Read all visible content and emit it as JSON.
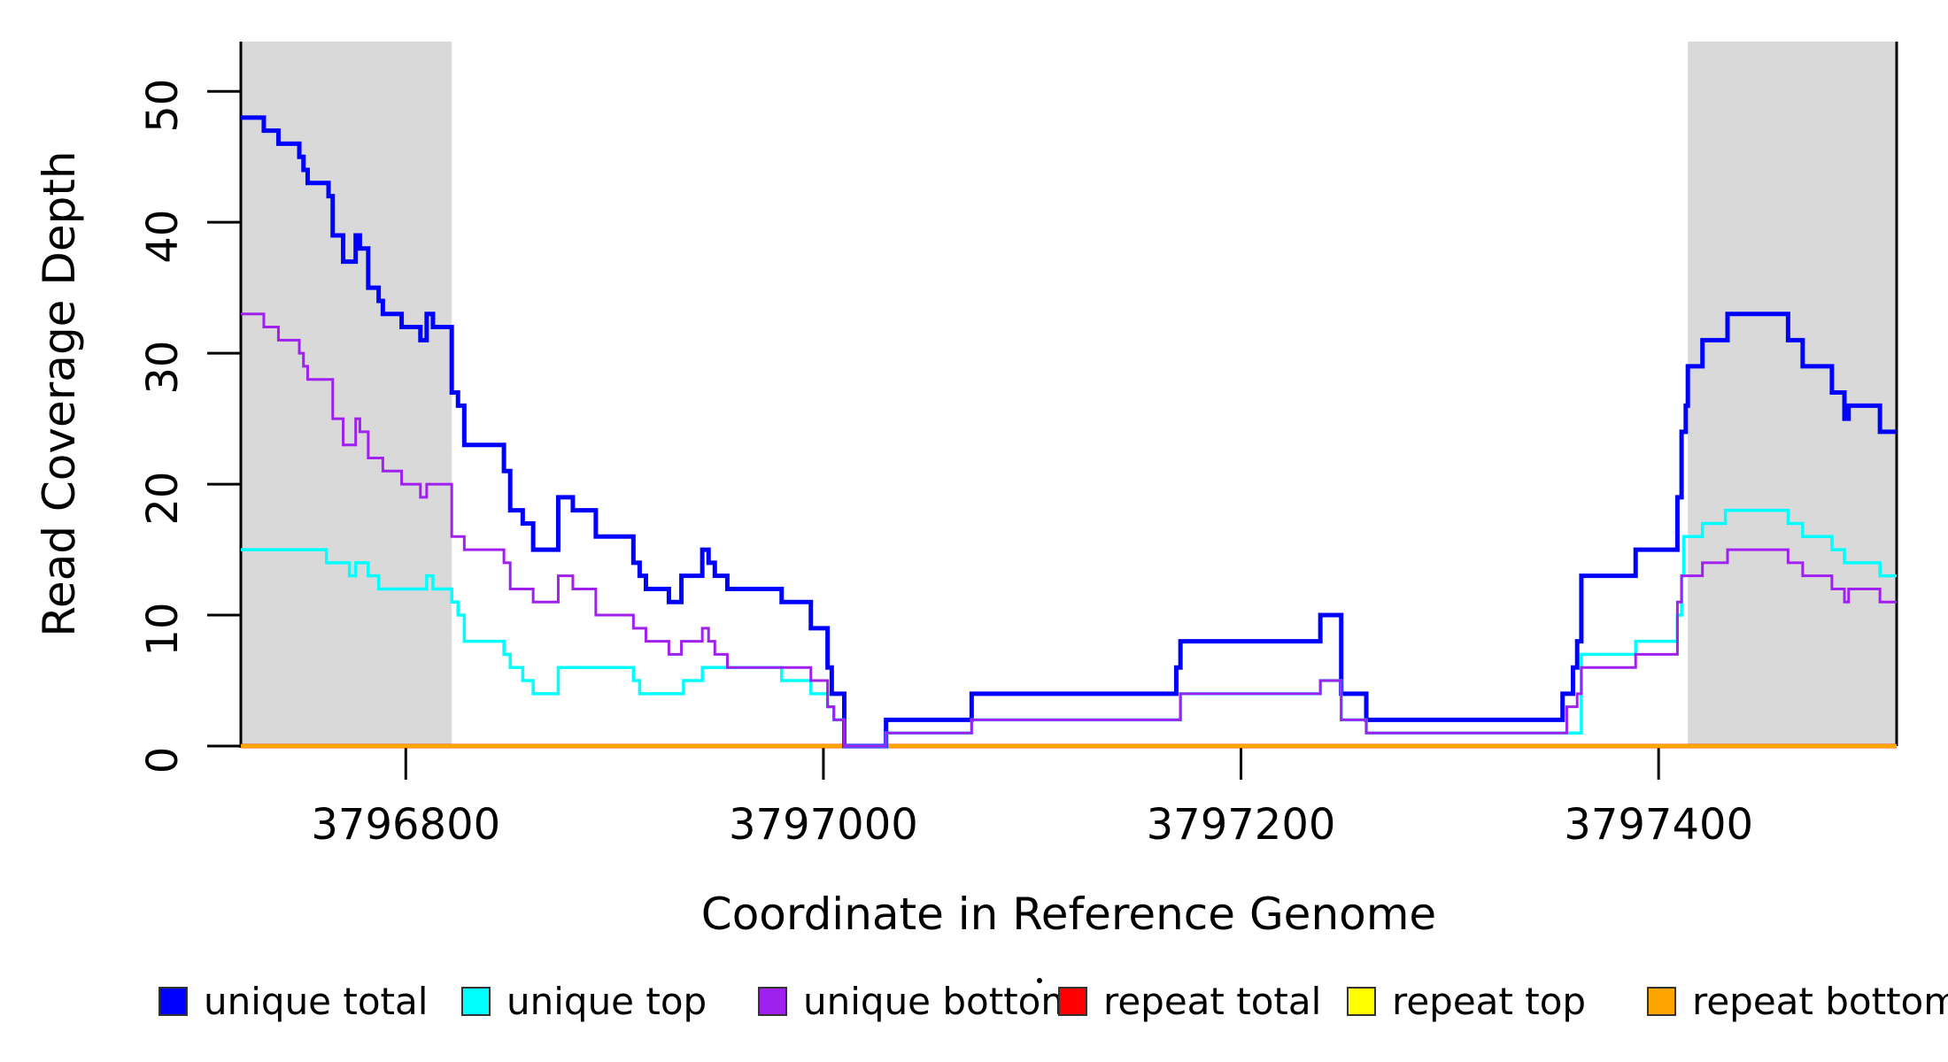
{
  "figure": {
    "xlabel": "Coordinate in Reference Genome",
    "ylabel": "Read Coverage Depth"
  },
  "chart_data": {
    "type": "line",
    "step": "step-after",
    "title": "",
    "xlabel": "Coordinate in Reference Genome",
    "ylabel": "Read Coverage Depth",
    "xlim": [
      3796721,
      3797514
    ],
    "ylim": [
      0,
      53.8
    ],
    "x_ticks": [
      3796800,
      3797000,
      3797200,
      3797400
    ],
    "y_ticks": [
      0,
      10,
      20,
      30,
      40,
      50
    ],
    "grid": false,
    "legend_position": "bottom",
    "background_color": "#ffffff",
    "shaded_region_color": "#d9d9d9",
    "shaded_regions": [
      [
        3796721,
        3796822
      ],
      [
        3797414,
        3797514
      ]
    ],
    "series": [
      {
        "name": "unique total",
        "color": "#0000ff",
        "line_width": 5,
        "points": [
          [
            3796721,
            48
          ],
          [
            3796732,
            47
          ],
          [
            3796739,
            46
          ],
          [
            3796749,
            45
          ],
          [
            3796751,
            44
          ],
          [
            3796753,
            43
          ],
          [
            3796763,
            42
          ],
          [
            3796765,
            39
          ],
          [
            3796770,
            37
          ],
          [
            3796776,
            39
          ],
          [
            3796778,
            38
          ],
          [
            3796782,
            35
          ],
          [
            3796787,
            34
          ],
          [
            3796789,
            33
          ],
          [
            3796798,
            32
          ],
          [
            3796807,
            31
          ],
          [
            3796810,
            33
          ],
          [
            3796813,
            32
          ],
          [
            3796822,
            27
          ],
          [
            3796825,
            26
          ],
          [
            3796828,
            23
          ],
          [
            3796847,
            21
          ],
          [
            3796850,
            18
          ],
          [
            3796856,
            17
          ],
          [
            3796861,
            15
          ],
          [
            3796873,
            19
          ],
          [
            3796880,
            18
          ],
          [
            3796891,
            16
          ],
          [
            3796909,
            14
          ],
          [
            3796912,
            13
          ],
          [
            3796915,
            12
          ],
          [
            3796926,
            11
          ],
          [
            3796932,
            13
          ],
          [
            3796942,
            15
          ],
          [
            3796945,
            14
          ],
          [
            3796948,
            13
          ],
          [
            3796954,
            12
          ],
          [
            3796980,
            11
          ],
          [
            3796994,
            9
          ],
          [
            3797002,
            6
          ],
          [
            3797004,
            4
          ],
          [
            3797010,
            0
          ],
          [
            3797030,
            2
          ],
          [
            3797071,
            4
          ],
          [
            3797169,
            6
          ],
          [
            3797171,
            8
          ],
          [
            3797238,
            10
          ],
          [
            3797248,
            4
          ],
          [
            3797260,
            2
          ],
          [
            3797354,
            4
          ],
          [
            3797359,
            6
          ],
          [
            3797361,
            8
          ],
          [
            3797363,
            13
          ],
          [
            3797389,
            15
          ],
          [
            3797409,
            19
          ],
          [
            3797411,
            24
          ],
          [
            3797413,
            26
          ],
          [
            3797414,
            29
          ],
          [
            3797421,
            31
          ],
          [
            3797433,
            33
          ],
          [
            3797462,
            31
          ],
          [
            3797469,
            29
          ],
          [
            3797483,
            27
          ],
          [
            3797489,
            25
          ],
          [
            3797491,
            26
          ],
          [
            3797506,
            24
          ]
        ]
      },
      {
        "name": "unique top",
        "color": "#00ffff",
        "line_width": 3.5,
        "points": [
          [
            3796721,
            15
          ],
          [
            3796762,
            14
          ],
          [
            3796773,
            13
          ],
          [
            3796776,
            14
          ],
          [
            3796782,
            13
          ],
          [
            3796787,
            12
          ],
          [
            3796810,
            13
          ],
          [
            3796813,
            12
          ],
          [
            3796822,
            11
          ],
          [
            3796825,
            10
          ],
          [
            3796828,
            8
          ],
          [
            3796847,
            7
          ],
          [
            3796850,
            6
          ],
          [
            3796856,
            5
          ],
          [
            3796861,
            4
          ],
          [
            3796873,
            6
          ],
          [
            3796909,
            5
          ],
          [
            3796912,
            4
          ],
          [
            3796933,
            5
          ],
          [
            3796942,
            6
          ],
          [
            3796980,
            5
          ],
          [
            3796994,
            4
          ],
          [
            3797002,
            3
          ],
          [
            3797005,
            2
          ],
          [
            3797010,
            0
          ],
          [
            3797030,
            1
          ],
          [
            3797071,
            2
          ],
          [
            3797171,
            4
          ],
          [
            3797238,
            5
          ],
          [
            3797248,
            2
          ],
          [
            3797260,
            1
          ],
          [
            3797363,
            7
          ],
          [
            3797389,
            8
          ],
          [
            3797409,
            10
          ],
          [
            3797411,
            13
          ],
          [
            3797412,
            16
          ],
          [
            3797421,
            17
          ],
          [
            3797432,
            18
          ],
          [
            3797462,
            17
          ],
          [
            3797469,
            16
          ],
          [
            3797483,
            15
          ],
          [
            3797489,
            14
          ],
          [
            3797506,
            13
          ]
        ]
      },
      {
        "name": "unique bottom",
        "color": "#a020f0",
        "line_width": 3,
        "points": [
          [
            3796721,
            33
          ],
          [
            3796732,
            32
          ],
          [
            3796739,
            31
          ],
          [
            3796749,
            30
          ],
          [
            3796751,
            29
          ],
          [
            3796753,
            28
          ],
          [
            3796765,
            25
          ],
          [
            3796770,
            23
          ],
          [
            3796776,
            25
          ],
          [
            3796778,
            24
          ],
          [
            3796782,
            22
          ],
          [
            3796789,
            21
          ],
          [
            3796798,
            20
          ],
          [
            3796807,
            19
          ],
          [
            3796810,
            20
          ],
          [
            3796822,
            16
          ],
          [
            3796828,
            15
          ],
          [
            3796847,
            14
          ],
          [
            3796850,
            12
          ],
          [
            3796861,
            11
          ],
          [
            3796873,
            13
          ],
          [
            3796880,
            12
          ],
          [
            3796891,
            10
          ],
          [
            3796909,
            9
          ],
          [
            3796915,
            8
          ],
          [
            3796926,
            7
          ],
          [
            3796932,
            8
          ],
          [
            3796942,
            9
          ],
          [
            3796945,
            8
          ],
          [
            3796948,
            7
          ],
          [
            3796954,
            6
          ],
          [
            3796994,
            5
          ],
          [
            3797002,
            3
          ],
          [
            3797005,
            2
          ],
          [
            3797010,
            0
          ],
          [
            3797030,
            1
          ],
          [
            3797071,
            2
          ],
          [
            3797171,
            4
          ],
          [
            3797238,
            5
          ],
          [
            3797248,
            2
          ],
          [
            3797260,
            1
          ],
          [
            3797356,
            3
          ],
          [
            3797361,
            4
          ],
          [
            3797363,
            6
          ],
          [
            3797389,
            7
          ],
          [
            3797409,
            11
          ],
          [
            3797411,
            13
          ],
          [
            3797421,
            14
          ],
          [
            3797433,
            15
          ],
          [
            3797462,
            14
          ],
          [
            3797469,
            13
          ],
          [
            3797483,
            12
          ],
          [
            3797489,
            11
          ],
          [
            3797491,
            12
          ],
          [
            3797506,
            11
          ]
        ]
      },
      {
        "name": "repeat total",
        "color": "#ff0000",
        "line_width": 5,
        "points": [
          [
            3796721,
            0
          ]
        ]
      },
      {
        "name": "repeat top",
        "color": "#ffff00",
        "line_width": 3.5,
        "points": [
          [
            3796721,
            0
          ]
        ]
      },
      {
        "name": "repeat bottom",
        "color": "#ffa500",
        "line_width": 4.5,
        "points": [
          [
            3796721,
            0
          ]
        ]
      }
    ],
    "legend": [
      {
        "label": "unique total",
        "color": "#0000ff"
      },
      {
        "label": "unique top",
        "color": "#00ffff"
      },
      {
        "label": "unique bottom",
        "color": "#a020f0"
      },
      {
        "label": "repeat total",
        "color": "#ff0000"
      },
      {
        "label": "repeat top",
        "color": "#ffff00"
      },
      {
        "label": "repeat bottom",
        "color": "#ffa500"
      }
    ]
  }
}
